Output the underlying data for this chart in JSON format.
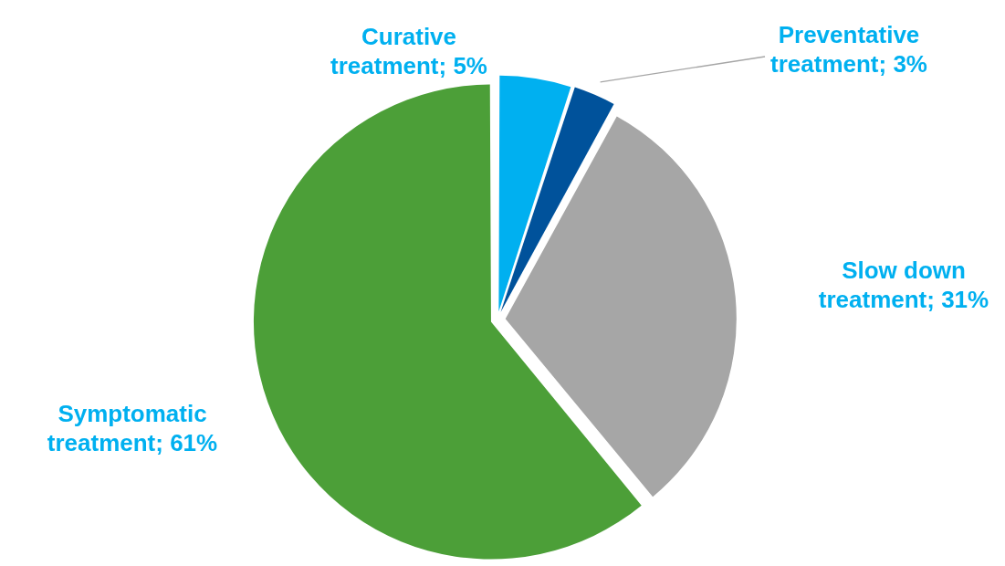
{
  "chart_data": {
    "type": "pie",
    "categories": [
      "Curative treatment",
      "Preventative treatment",
      "Slow down treatment",
      "Symptomatic treatment"
    ],
    "values": [
      5,
      3,
      31,
      61
    ],
    "colors": [
      "#00b0f0",
      "#00529b",
      "#a6a6a6",
      "#4c9f38"
    ],
    "value_labels": [
      "5%",
      "3%",
      "31%",
      "61%"
    ],
    "legend": false
  }
}
